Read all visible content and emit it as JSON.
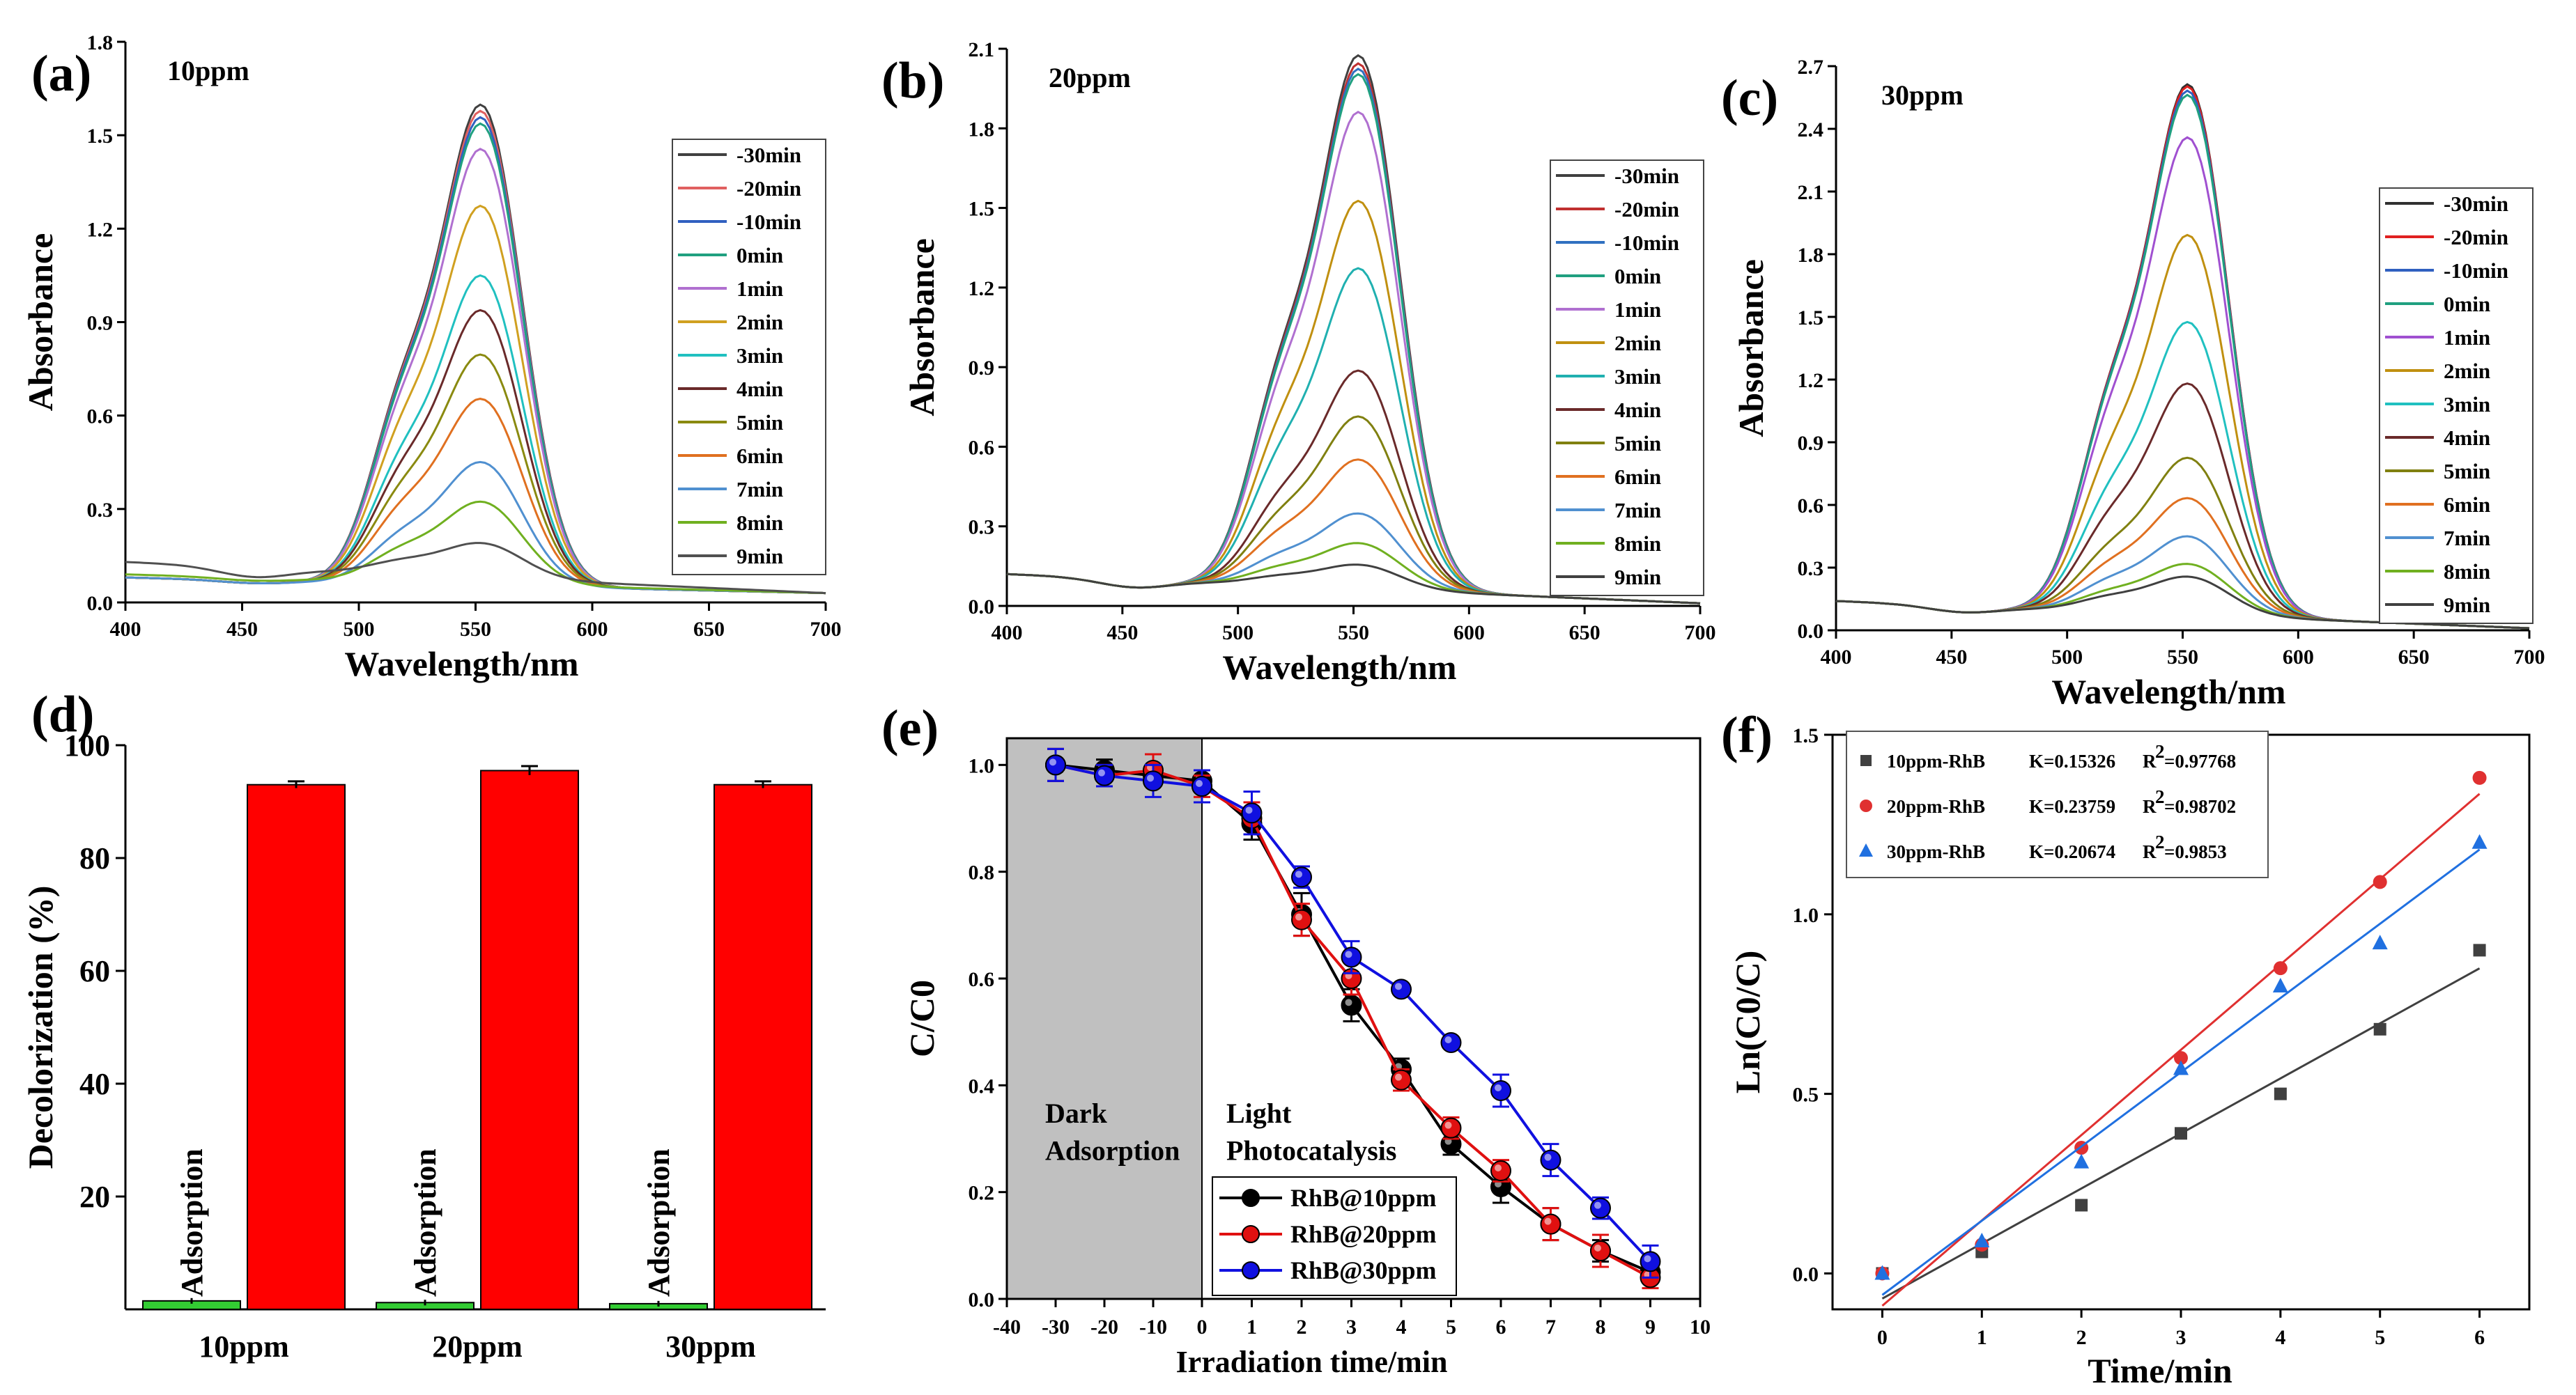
{
  "chart_data": [
    {
      "id": "a",
      "type": "line",
      "panel_label": "(a)",
      "title": "10ppm",
      "xlabel": "Wavelength/nm",
      "ylabel": "Absorbance",
      "xlim": [
        400,
        700
      ],
      "ylim": [
        0,
        1.8
      ],
      "xticks": [
        "400",
        "450",
        "500",
        "550",
        "600",
        "650",
        "700"
      ],
      "yticks": [
        "0.0",
        "0.3",
        "0.6",
        "0.9",
        "1.2",
        "1.5",
        "1.8"
      ],
      "legend_position": "top-right",
      "series": [
        {
          "name": "-30min",
          "color": "#404040",
          "peak": 1.52,
          "baseline400": 0.08,
          "baseline700": 0.03
        },
        {
          "name": "-20min",
          "color": "#e06060",
          "peak": 1.5,
          "baseline400": 0.08,
          "baseline700": 0.03
        },
        {
          "name": "-10min",
          "color": "#3060c0",
          "peak": 1.48,
          "baseline400": 0.08,
          "baseline700": 0.03
        },
        {
          "name": "0min",
          "color": "#20a080",
          "peak": 1.46,
          "baseline400": 0.08,
          "baseline700": 0.03
        },
        {
          "name": "1min",
          "color": "#b070d0",
          "peak": 1.38,
          "baseline400": 0.08,
          "baseline700": 0.03
        },
        {
          "name": "2min",
          "color": "#d0a020",
          "peak": 1.2,
          "baseline400": 0.08,
          "baseline700": 0.03
        },
        {
          "name": "3min",
          "color": "#20c0c0",
          "peak": 0.98,
          "baseline400": 0.08,
          "baseline700": 0.03
        },
        {
          "name": "4min",
          "color": "#6a2a2a",
          "peak": 0.87,
          "baseline400": 0.08,
          "baseline700": 0.03
        },
        {
          "name": "5min",
          "color": "#8a8a10",
          "peak": 0.73,
          "baseline400": 0.08,
          "baseline700": 0.03
        },
        {
          "name": "6min",
          "color": "#e07020",
          "peak": 0.59,
          "baseline400": 0.08,
          "baseline700": 0.03
        },
        {
          "name": "7min",
          "color": "#5090d0",
          "peak": 0.39,
          "baseline400": 0.08,
          "baseline700": 0.03
        },
        {
          "name": "8min",
          "color": "#70b020",
          "peak": 0.26,
          "baseline400": 0.09,
          "baseline700": 0.03
        },
        {
          "name": "9min",
          "color": "#505050",
          "peak": 0.11,
          "baseline400": 0.13,
          "baseline700": 0.03
        }
      ]
    },
    {
      "id": "b",
      "type": "line",
      "panel_label": "(b)",
      "title": "20ppm",
      "xlabel": "Wavelength/nm",
      "ylabel": "Absorbance",
      "xlim": [
        400,
        700
      ],
      "ylim": [
        0,
        2.1
      ],
      "xticks": [
        "400",
        "450",
        "500",
        "550",
        "600",
        "650",
        "700"
      ],
      "yticks": [
        "0.0",
        "0.3",
        "0.6",
        "0.9",
        "1.2",
        "1.5",
        "1.8",
        "2.1"
      ],
      "legend_position": "right",
      "series": [
        {
          "name": "-30min",
          "color": "#404040",
          "peak": 1.98,
          "baseline400": 0.12,
          "baseline700": 0.01
        },
        {
          "name": "-20min",
          "color": "#c03030",
          "peak": 1.95,
          "baseline400": 0.12,
          "baseline700": 0.01
        },
        {
          "name": "-10min",
          "color": "#3070c0",
          "peak": 1.93,
          "baseline400": 0.12,
          "baseline700": 0.01
        },
        {
          "name": "0min",
          "color": "#20a080",
          "peak": 1.91,
          "baseline400": 0.12,
          "baseline700": 0.01
        },
        {
          "name": "1min",
          "color": "#b070d0",
          "peak": 1.77,
          "baseline400": 0.12,
          "baseline700": 0.01
        },
        {
          "name": "2min",
          "color": "#c09010",
          "peak": 1.44,
          "baseline400": 0.12,
          "baseline700": 0.01
        },
        {
          "name": "3min",
          "color": "#20b0b0",
          "peak": 1.19,
          "baseline400": 0.12,
          "baseline700": 0.01
        },
        {
          "name": "4min",
          "color": "#6a2a2a",
          "peak": 0.81,
          "baseline400": 0.12,
          "baseline700": 0.01
        },
        {
          "name": "5min",
          "color": "#808010",
          "peak": 0.64,
          "baseline400": 0.12,
          "baseline700": 0.01
        },
        {
          "name": "6min",
          "color": "#e07020",
          "peak": 0.48,
          "baseline400": 0.12,
          "baseline700": 0.01
        },
        {
          "name": "7min",
          "color": "#5090d0",
          "peak": 0.28,
          "baseline400": 0.12,
          "baseline700": 0.01
        },
        {
          "name": "8min",
          "color": "#70b020",
          "peak": 0.17,
          "baseline400": 0.12,
          "baseline700": 0.01
        },
        {
          "name": "9min",
          "color": "#404040",
          "peak": 0.09,
          "baseline400": 0.12,
          "baseline700": 0.01
        }
      ]
    },
    {
      "id": "c",
      "type": "line",
      "panel_label": "(c)",
      "title": "30ppm",
      "xlabel": "Wavelength/nm",
      "ylabel": "Absorbance",
      "xlim": [
        400,
        700
      ],
      "ylim": [
        0,
        2.7
      ],
      "xticks": [
        "400",
        "450",
        "500",
        "550",
        "600",
        "650",
        "700"
      ],
      "yticks": [
        "0.0",
        "0.3",
        "0.6",
        "0.9",
        "1.2",
        "1.5",
        "1.8",
        "2.1",
        "2.4",
        "2.7"
      ],
      "legend_position": "right",
      "series": [
        {
          "name": "-30min",
          "color": "#303030",
          "peak": 2.5,
          "baseline400": 0.14,
          "baseline700": 0.01
        },
        {
          "name": "-20min",
          "color": "#e02020",
          "peak": 2.49,
          "baseline400": 0.14,
          "baseline700": 0.01
        },
        {
          "name": "-10min",
          "color": "#3060c0",
          "peak": 2.47,
          "baseline400": 0.14,
          "baseline700": 0.01
        },
        {
          "name": "0min",
          "color": "#20a080",
          "peak": 2.45,
          "baseline400": 0.14,
          "baseline700": 0.01
        },
        {
          "name": "1min",
          "color": "#a050d0",
          "peak": 2.25,
          "baseline400": 0.14,
          "baseline700": 0.01
        },
        {
          "name": "2min",
          "color": "#c09010",
          "peak": 1.79,
          "baseline400": 0.14,
          "baseline700": 0.01
        },
        {
          "name": "3min",
          "color": "#20c0c0",
          "peak": 1.38,
          "baseline400": 0.14,
          "baseline700": 0.01
        },
        {
          "name": "4min",
          "color": "#6a2a2a",
          "peak": 1.09,
          "baseline400": 0.14,
          "baseline700": 0.01
        },
        {
          "name": "5min",
          "color": "#808010",
          "peak": 0.74,
          "baseline400": 0.14,
          "baseline700": 0.01
        },
        {
          "name": "6min",
          "color": "#e07020",
          "peak": 0.55,
          "baseline400": 0.14,
          "baseline700": 0.01
        },
        {
          "name": "7min",
          "color": "#5090d0",
          "peak": 0.37,
          "baseline400": 0.14,
          "baseline700": 0.01
        },
        {
          "name": "8min",
          "color": "#70b020",
          "peak": 0.24,
          "baseline400": 0.14,
          "baseline700": 0.01
        },
        {
          "name": "9min",
          "color": "#404040",
          "peak": 0.18,
          "baseline400": 0.14,
          "baseline700": 0.01
        }
      ]
    },
    {
      "id": "d",
      "type": "bar",
      "panel_label": "(d)",
      "title": "",
      "xlabel": "",
      "ylabel": "Decolorization (%)",
      "ylim": [
        0,
        100
      ],
      "yticks": [
        "20",
        "40",
        "60",
        "80",
        "100"
      ],
      "categories": [
        "10ppm",
        "20ppm",
        "30ppm"
      ],
      "series": [
        {
          "name": "Adsorption",
          "color": "#33cc33",
          "values": [
            1.5,
            1.2,
            1.0
          ],
          "errors": [
            0.5,
            0.5,
            0.5
          ]
        },
        {
          "name": "Photocatalysis",
          "color": "#ff0000",
          "values": [
            93,
            95.5,
            93
          ],
          "errors": [
            0.6,
            0.8,
            0.6
          ]
        }
      ],
      "bar_annotation": "Adsorption"
    },
    {
      "id": "e",
      "type": "line",
      "panel_label": "(e)",
      "title": "",
      "xlabel": "Irradiation time/min",
      "ylabel": "C/C0",
      "xlim": [
        -40,
        10
      ],
      "ylim": [
        0,
        1.05
      ],
      "xticks": [
        "-40",
        "-30",
        "-20",
        "-10",
        "0",
        "1",
        "2",
        "3",
        "4",
        "5",
        "6",
        "7",
        "8",
        "9",
        "10"
      ],
      "yticks": [
        "0.0",
        "0.2",
        "0.4",
        "0.6",
        "0.8",
        "1.0"
      ],
      "x_scale_note": "dark region -40..0 compressed, light region 0..10 expanded",
      "regions": [
        {
          "label_line1": "Dark",
          "label_line2": "Adsorption",
          "shaded": true
        },
        {
          "label_line1": "Light",
          "label_line2": "Photocatalysis",
          "shaded": false
        }
      ],
      "legend_position": "bottom-center",
      "x": [
        -30,
        -20,
        -10,
        0,
        1,
        2,
        3,
        4,
        5,
        6,
        7,
        8,
        9
      ],
      "series": [
        {
          "name": "RhB@10ppm",
          "color": "#000000",
          "values": [
            1.0,
            0.99,
            0.98,
            0.97,
            0.89,
            0.72,
            0.55,
            0.43,
            0.29,
            0.21,
            0.14,
            0.09,
            0.05
          ],
          "errors": [
            0.03,
            0.02,
            0.02,
            0.02,
            0.03,
            0.04,
            0.03,
            0.02,
            0.02,
            0.03,
            0.03,
            0.02,
            0.02
          ]
        },
        {
          "name": "RhB@20ppm",
          "color": "#e01010",
          "values": [
            1.0,
            0.98,
            0.99,
            0.96,
            0.9,
            0.71,
            0.6,
            0.41,
            0.32,
            0.24,
            0.14,
            0.09,
            0.04
          ],
          "errors": [
            0.03,
            0.02,
            0.03,
            0.02,
            0.03,
            0.03,
            0.03,
            0.02,
            0.02,
            0.02,
            0.03,
            0.03,
            0.02
          ]
        },
        {
          "name": "RhB@30ppm",
          "color": "#1010e0",
          "values": [
            1.0,
            0.98,
            0.97,
            0.96,
            0.91,
            0.79,
            0.64,
            0.58,
            0.48,
            0.39,
            0.26,
            0.17,
            0.07
          ],
          "errors": [
            0.03,
            0.02,
            0.03,
            0.03,
            0.04,
            0.02,
            0.03,
            0.01,
            0.01,
            0.03,
            0.03,
            0.02,
            0.03
          ]
        }
      ]
    },
    {
      "id": "f",
      "type": "scatter",
      "panel_label": "(f)",
      "title": "",
      "xlabel": "Time/min",
      "ylabel": "Ln(C0/C)",
      "xlim": [
        -0.5,
        6.5
      ],
      "ylim": [
        -0.1,
        1.5
      ],
      "xticks": [
        "0",
        "1",
        "2",
        "3",
        "4",
        "5",
        "6"
      ],
      "yticks": [
        "0.0",
        "0.5",
        "1.0",
        "1.5"
      ],
      "legend_position": "top-left",
      "x": [
        0,
        1,
        2,
        3,
        4,
        5,
        6
      ],
      "series": [
        {
          "name": "10ppm-RhB",
          "K_text": "K=0.15326",
          "R2_label": "R",
          "R2_sup": "2",
          "R2_value": "=0.97768",
          "color": "#404040",
          "marker": "square",
          "values": [
            0.0,
            0.06,
            0.19,
            0.39,
            0.5,
            0.68,
            0.9
          ],
          "fit_slope": 0.15326,
          "fit_intercept": -0.07
        },
        {
          "name": "20ppm-RhB",
          "K_text": "K=0.23759",
          "R2_label": "R",
          "R2_sup": "2",
          "R2_value": "=0.98702",
          "color": "#e03030",
          "marker": "circle",
          "values": [
            0.0,
            0.08,
            0.35,
            0.6,
            0.85,
            1.09,
            1.38
          ],
          "fit_slope": 0.23759,
          "fit_intercept": -0.09
        },
        {
          "name": "30ppm-RhB",
          "K_text": "K=0.20674",
          "R2_label": "R",
          "R2_sup": "2",
          "R2_value": "=0.9853",
          "color": "#2070e0",
          "marker": "triangle",
          "values": [
            0.0,
            0.09,
            0.31,
            0.57,
            0.8,
            0.92,
            1.2
          ],
          "fit_slope": 0.20674,
          "fit_intercept": -0.06
        }
      ]
    }
  ]
}
